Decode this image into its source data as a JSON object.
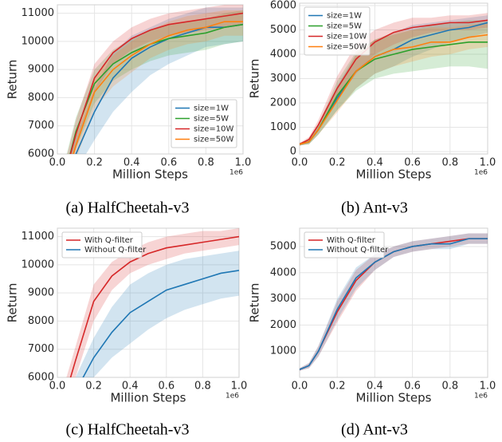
{
  "chart_data": [
    {
      "type": "line",
      "caption": "(a) HalfCheetah-v3",
      "xlabel": "Million Steps",
      "ylabel": "Return",
      "x_offset_label": "1e6",
      "x": [
        0.05,
        0.1,
        0.2,
        0.3,
        0.4,
        0.5,
        0.6,
        0.7,
        0.8,
        0.9,
        1.0
      ],
      "xlim": [
        0,
        1
      ],
      "xticks": [
        {
          "value": 0,
          "label": "0.0"
        },
        0.2,
        0.4,
        0.6,
        0.8,
        {
          "value": 1,
          "label": "1.0"
        }
      ],
      "ylim": [
        6000,
        11300
      ],
      "yticks": [
        6000,
        7000,
        8000,
        9000,
        10000,
        11000
      ],
      "grid": true,
      "legend": "lower right",
      "series": [
        {
          "name": "size=1W",
          "color": "#1f77b4",
          "values": [
            5000,
            6000,
            7500,
            8700,
            9400,
            9800,
            10100,
            10300,
            10500,
            10500,
            10600
          ],
          "lower": [
            4500,
            5400,
            6500,
            7500,
            8200,
            8800,
            9200,
            9500,
            9800,
            9900,
            10000
          ],
          "upper": [
            5500,
            6600,
            8300,
            9600,
            10200,
            10500,
            10800,
            11000,
            11200,
            11200,
            11200
          ]
        },
        {
          "name": "size=5W",
          "color": "#2ca02c",
          "values": [
            5500,
            6800,
            8500,
            9200,
            9600,
            9900,
            10100,
            10200,
            10300,
            10500,
            10600
          ],
          "lower": [
            5000,
            6200,
            7800,
            8600,
            9000,
            9300,
            9500,
            9600,
            9700,
            9900,
            10000
          ],
          "upper": [
            6000,
            7300,
            9000,
            9700,
            10100,
            10400,
            10600,
            10700,
            10800,
            11000,
            11100
          ]
        },
        {
          "name": "size=10W",
          "color": "#d62728",
          "values": [
            5500,
            6700,
            8700,
            9600,
            10100,
            10400,
            10600,
            10700,
            10800,
            10900,
            11000
          ],
          "lower": [
            5100,
            6200,
            8200,
            9200,
            9700,
            10000,
            10200,
            10300,
            10400,
            10500,
            10600
          ],
          "upper": [
            5900,
            7200,
            9200,
            10000,
            10500,
            10800,
            11000,
            11100,
            11200,
            11300,
            11300
          ]
        },
        {
          "name": "size=50W",
          "color": "#ff7f0e",
          "values": [
            5200,
            6300,
            8200,
            9000,
            9500,
            9900,
            10200,
            10400,
            10500,
            10700,
            10700
          ],
          "lower": [
            4800,
            5800,
            7600,
            8400,
            8900,
            9400,
            9700,
            9900,
            10000,
            10200,
            10200
          ],
          "upper": [
            5600,
            6800,
            8700,
            9500,
            10000,
            10400,
            10700,
            10900,
            11000,
            11100,
            11100
          ]
        }
      ]
    },
    {
      "type": "line",
      "caption": "(b) Ant-v3",
      "xlabel": "Million Steps",
      "ylabel": "Return",
      "x_offset_label": "1e6",
      "x": [
        0,
        0.05,
        0.1,
        0.2,
        0.3,
        0.4,
        0.5,
        0.6,
        0.7,
        0.8,
        0.9,
        1.0
      ],
      "xlim": [
        0,
        1
      ],
      "xticks": [
        {
          "value": 0,
          "label": "0.0"
        },
        0.2,
        0.4,
        0.6,
        0.8,
        {
          "value": 1,
          "label": "1.0"
        }
      ],
      "ylim": [
        -100,
        6100
      ],
      "yticks": [
        0,
        1000,
        2000,
        3000,
        4000,
        5000,
        6000
      ],
      "grid": true,
      "legend": "upper left",
      "series": [
        {
          "name": "size=1W",
          "color": "#1f77b4",
          "values": [
            300,
            400,
            900,
            2200,
            3300,
            3900,
            4200,
            4600,
            4800,
            5000,
            5100,
            5300
          ],
          "lower": [
            250,
            300,
            700,
            1700,
            2600,
            3200,
            3500,
            3900,
            4200,
            4500,
            4700,
            4900
          ],
          "upper": [
            350,
            500,
            1100,
            2700,
            4000,
            4600,
            4900,
            5200,
            5300,
            5400,
            5500,
            5600
          ]
        },
        {
          "name": "size=5W",
          "color": "#2ca02c",
          "values": [
            300,
            400,
            900,
            2300,
            3300,
            3800,
            4000,
            4200,
            4300,
            4400,
            4500,
            4500
          ],
          "lower": [
            250,
            300,
            700,
            1700,
            2500,
            3000,
            3200,
            3300,
            3400,
            3500,
            3500,
            3400
          ],
          "upper": [
            350,
            500,
            1100,
            2900,
            4100,
            4600,
            4800,
            5000,
            5200,
            5300,
            5400,
            5400
          ]
        },
        {
          "name": "size=10W",
          "color": "#d62728",
          "values": [
            300,
            500,
            1100,
            2600,
            3800,
            4500,
            4900,
            5100,
            5200,
            5300,
            5300,
            5400
          ],
          "lower": [
            250,
            400,
            900,
            2100,
            3200,
            4000,
            4400,
            4700,
            4900,
            5000,
            5000,
            5100
          ],
          "upper": [
            350,
            600,
            1300,
            3100,
            4400,
            5000,
            5300,
            5500,
            5500,
            5600,
            5600,
            5700
          ]
        },
        {
          "name": "size=50W",
          "color": "#ff7f0e",
          "values": [
            300,
            400,
            900,
            2100,
            3300,
            3900,
            4200,
            4300,
            4500,
            4500,
            4700,
            4800
          ],
          "lower": [
            250,
            300,
            700,
            1600,
            2600,
            3200,
            3500,
            3700,
            3900,
            4000,
            4200,
            4300
          ],
          "upper": [
            350,
            500,
            1100,
            2600,
            4000,
            4600,
            4900,
            5000,
            5100,
            5100,
            5200,
            5300
          ]
        }
      ]
    },
    {
      "type": "line",
      "caption": "(c) HalfCheetah-v3",
      "xlabel": "Million Steps",
      "ylabel": "Return",
      "x_offset_label": "1e6",
      "x": [
        0.05,
        0.1,
        0.2,
        0.3,
        0.4,
        0.5,
        0.6,
        0.7,
        0.8,
        0.9,
        1.0
      ],
      "xlim": [
        0,
        1
      ],
      "xticks": [
        {
          "value": 0,
          "label": "0.0"
        },
        0.2,
        0.4,
        0.6,
        0.8,
        {
          "value": 1,
          "label": "1.0"
        }
      ],
      "ylim": [
        6000,
        11300
      ],
      "yticks": [
        6000,
        7000,
        8000,
        9000,
        10000,
        11000
      ],
      "grid": true,
      "legend": "upper left",
      "series": [
        {
          "name": "With Q-filter",
          "color": "#d62728",
          "values": [
            5500,
            6600,
            8700,
            9600,
            10100,
            10400,
            10600,
            10700,
            10800,
            10900,
            11000
          ],
          "lower": [
            5000,
            6000,
            8000,
            9100,
            9700,
            10000,
            10200,
            10400,
            10500,
            10600,
            10700
          ],
          "upper": [
            6000,
            7100,
            9300,
            10100,
            10500,
            10800,
            11000,
            11100,
            11200,
            11200,
            11300
          ]
        },
        {
          "name": "Without Q-filter",
          "color": "#1f77b4",
          "values": [
            4800,
            5500,
            6700,
            7600,
            8300,
            8700,
            9100,
            9300,
            9500,
            9700,
            9800
          ],
          "lower": [
            4400,
            5000,
            6000,
            6700,
            7200,
            7700,
            8100,
            8400,
            8600,
            8800,
            8900
          ],
          "upper": [
            5200,
            6000,
            7400,
            8500,
            9300,
            9700,
            10000,
            10200,
            10300,
            10400,
            10500
          ]
        }
      ]
    },
    {
      "type": "line",
      "caption": "(d) Ant-v3",
      "xlabel": "Million Steps",
      "ylabel": "Return",
      "x_offset_label": "1e6",
      "x": [
        0,
        0.05,
        0.1,
        0.2,
        0.3,
        0.4,
        0.5,
        0.6,
        0.7,
        0.8,
        0.9,
        1.0
      ],
      "xlim": [
        0,
        1
      ],
      "xticks": [
        {
          "value": 0,
          "label": "0.0"
        },
        0.2,
        0.4,
        0.6,
        0.8,
        {
          "value": 1,
          "label": "1.0"
        }
      ],
      "ylim": [
        0,
        5700
      ],
      "yticks": [
        1000,
        2000,
        3000,
        4000,
        5000
      ],
      "grid": true,
      "legend": "upper left",
      "series": [
        {
          "name": "With Q-filter",
          "color": "#d62728",
          "values": [
            300,
            450,
            1000,
            2500,
            3700,
            4400,
            4800,
            5000,
            5100,
            5200,
            5300,
            5300
          ],
          "lower": [
            250,
            350,
            800,
            2100,
            3300,
            4100,
            4600,
            4800,
            4900,
            5000,
            5100,
            5100
          ],
          "upper": [
            350,
            550,
            1200,
            2900,
            4100,
            4700,
            5000,
            5200,
            5300,
            5400,
            5500,
            5500
          ]
        },
        {
          "name": "Without Q-filter",
          "color": "#1f77b4",
          "values": [
            300,
            450,
            1000,
            2600,
            3800,
            4400,
            4800,
            5000,
            5100,
            5100,
            5300,
            5300
          ],
          "lower": [
            250,
            350,
            800,
            2200,
            3400,
            4100,
            4600,
            4800,
            4900,
            4900,
            5100,
            5100
          ],
          "upper": [
            350,
            550,
            1200,
            3000,
            4200,
            4700,
            5000,
            5200,
            5300,
            5400,
            5500,
            5500
          ]
        }
      ]
    }
  ]
}
